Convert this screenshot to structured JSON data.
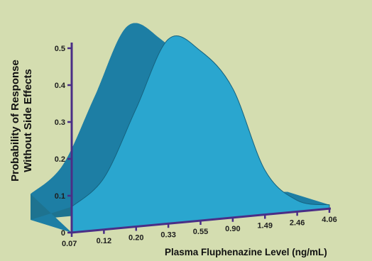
{
  "chart_data": {
    "type": "area",
    "title": "",
    "xlabel": "Plasma Fluphenazine Level (ng/mL)",
    "ylabel_line1": "Probability of Response",
    "ylabel_line2": "Without Side Effects",
    "x_tick_labels": [
      "0.07",
      "0.12",
      "0.20",
      "0.33",
      "0.55",
      "0.90",
      "1.49",
      "2.46",
      "4.06"
    ],
    "y_tick_labels": [
      "0",
      "0.1",
      "0.2",
      "0.3",
      "0.4",
      "0.5"
    ],
    "ylim": [
      0,
      0.5
    ],
    "x": [
      "0.07",
      "0.12",
      "0.20",
      "0.33",
      "0.55",
      "0.90",
      "1.49",
      "2.46",
      "4.06"
    ],
    "values": [
      0.07,
      0.14,
      0.32,
      0.5,
      0.46,
      0.35,
      0.12,
      0.03,
      0.01
    ],
    "scale": "log",
    "grid": false,
    "colors": {
      "background": "#d4ddb0",
      "front_face": "#2aa6cf",
      "back_face": "#1d6f8f",
      "top_surface": "#1e7ea3",
      "axis": "#4a2e86"
    }
  }
}
